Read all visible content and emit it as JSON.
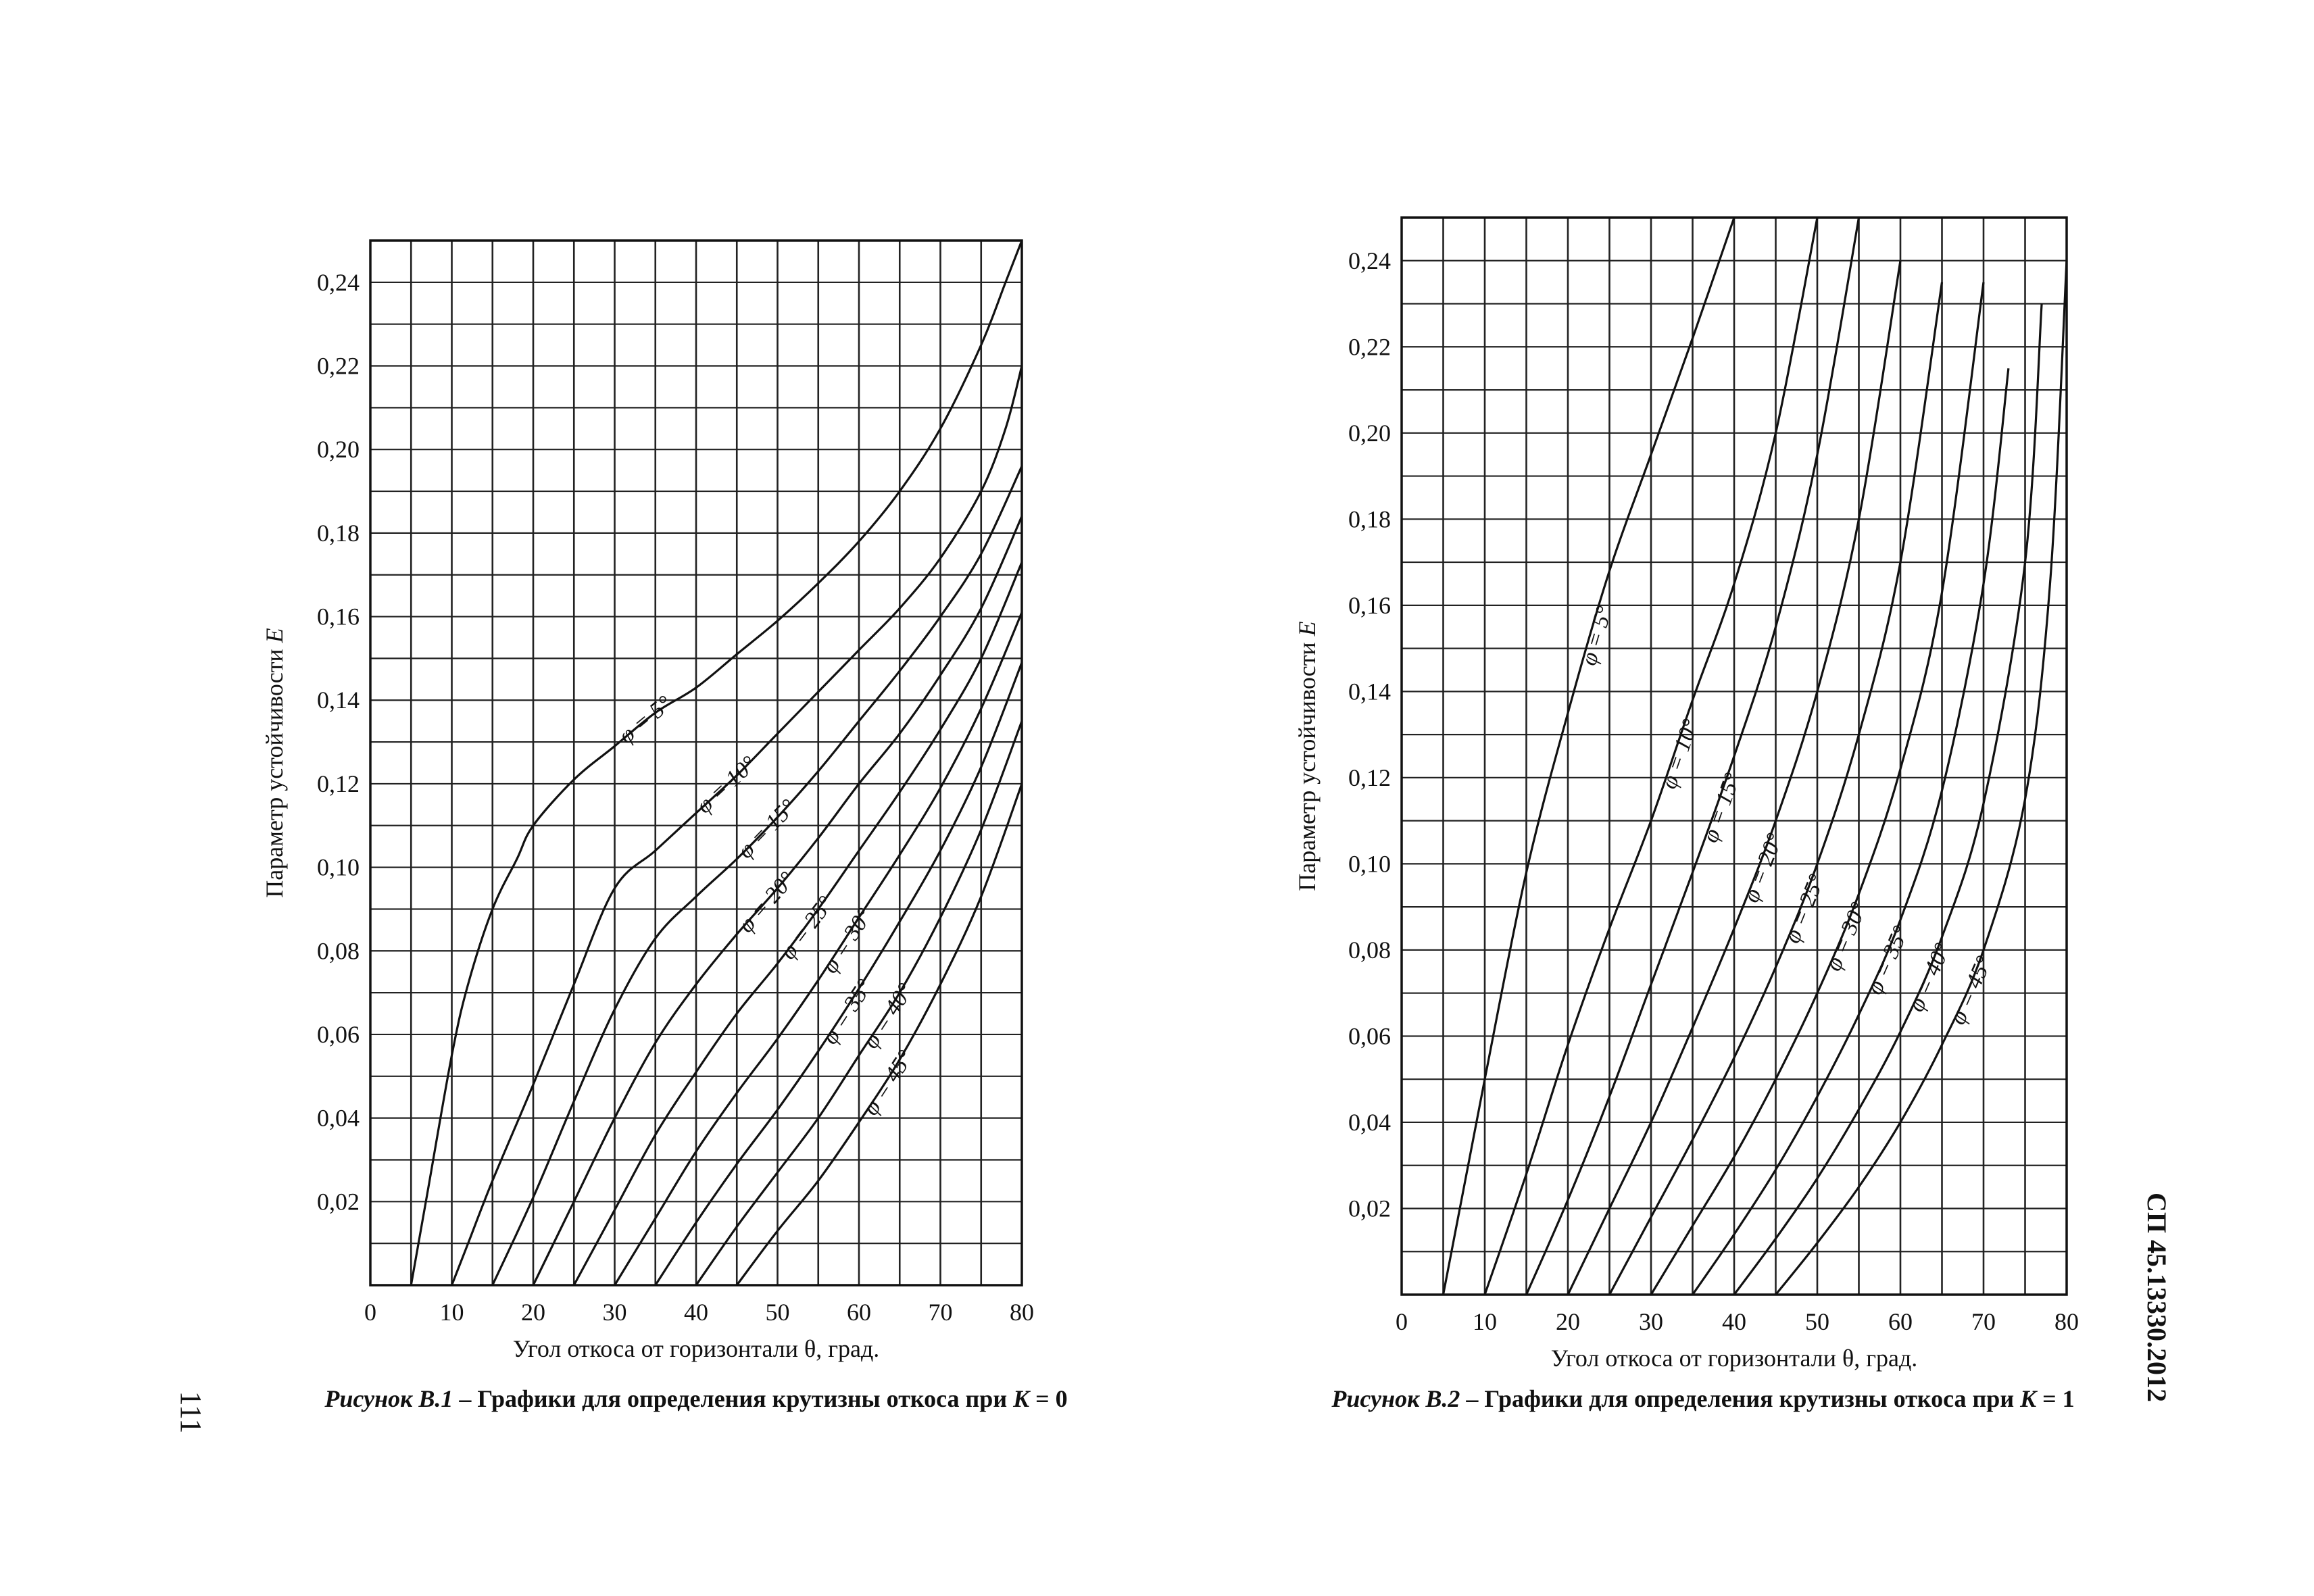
{
  "page": {
    "page_number": "111",
    "standard_code": "СП 45.13330.2012"
  },
  "chart_data": [
    {
      "type": "line",
      "caption_number": "Рисунок В.1",
      "caption_text": " – Графики для определения крутизны откоса при ",
      "caption_var": "K",
      "caption_eq": " = 0",
      "xlabel": "Угол откоса от горизонтали θ, град.",
      "ylabel": "Параметр устойчивости ",
      "ylabel_var": "E",
      "xlim": [
        0,
        80
      ],
      "ylim": [
        0,
        0.25
      ],
      "x_ticks": [
        "0",
        "10",
        "20",
        "30",
        "40",
        "50",
        "60",
        "70",
        "80"
      ],
      "y_ticks": [
        "0,02",
        "0,04",
        "0,06",
        "0,08",
        "0,10",
        "0,12",
        "0,14",
        "0,16",
        "0,18",
        "0,20",
        "0,22",
        "0,24"
      ],
      "grid": true,
      "series": [
        {
          "name": "φ = 5°",
          "x": [
            5,
            7,
            10,
            12,
            15,
            18,
            20,
            25,
            30,
            35,
            40,
            45,
            50,
            55,
            60,
            65,
            70,
            75,
            78,
            80
          ],
          "y": [
            0,
            0.022,
            0.055,
            0.072,
            0.09,
            0.102,
            0.11,
            0.121,
            0.129,
            0.137,
            0.143,
            0.151,
            0.159,
            0.168,
            0.178,
            0.19,
            0.205,
            0.225,
            0.24,
            0.252
          ]
        },
        {
          "name": "φ = 10°",
          "x": [
            10,
            12,
            15,
            20,
            25,
            30,
            35,
            40,
            45,
            50,
            55,
            60,
            65,
            70,
            75,
            78,
            80
          ],
          "y": [
            0,
            0.01,
            0.025,
            0.048,
            0.072,
            0.095,
            0.104,
            0.113,
            0.122,
            0.132,
            0.142,
            0.152,
            0.162,
            0.174,
            0.19,
            0.205,
            0.22
          ]
        },
        {
          "name": "φ = 15°",
          "x": [
            15,
            20,
            25,
            30,
            35,
            40,
            45,
            50,
            55,
            60,
            65,
            70,
            75,
            80
          ],
          "y": [
            0,
            0.021,
            0.044,
            0.066,
            0.083,
            0.093,
            0.102,
            0.112,
            0.123,
            0.135,
            0.147,
            0.16,
            0.175,
            0.196
          ]
        },
        {
          "name": "φ = 20°",
          "x": [
            20,
            25,
            30,
            35,
            40,
            45,
            50,
            55,
            60,
            65,
            70,
            75,
            80
          ],
          "y": [
            0,
            0.02,
            0.04,
            0.058,
            0.072,
            0.084,
            0.095,
            0.107,
            0.12,
            0.132,
            0.146,
            0.162,
            0.184
          ]
        },
        {
          "name": "φ = 25°",
          "x": [
            25,
            30,
            35,
            40,
            45,
            50,
            55,
            60,
            65,
            70,
            75,
            80
          ],
          "y": [
            0,
            0.018,
            0.036,
            0.051,
            0.065,
            0.077,
            0.09,
            0.104,
            0.118,
            0.133,
            0.15,
            0.173
          ]
        },
        {
          "name": "φ = 30°",
          "x": [
            30,
            35,
            40,
            45,
            50,
            55,
            60,
            65,
            70,
            75,
            80
          ],
          "y": [
            0,
            0.016,
            0.032,
            0.046,
            0.059,
            0.073,
            0.088,
            0.103,
            0.119,
            0.138,
            0.161
          ]
        },
        {
          "name": "φ = 35°",
          "x": [
            35,
            40,
            45,
            50,
            55,
            60,
            65,
            70,
            75,
            80
          ],
          "y": [
            0,
            0.015,
            0.029,
            0.042,
            0.056,
            0.071,
            0.087,
            0.104,
            0.124,
            0.149
          ]
        },
        {
          "name": "φ = 40°",
          "x": [
            40,
            45,
            50,
            55,
            60,
            65,
            70,
            75,
            80
          ],
          "y": [
            0,
            0.014,
            0.027,
            0.04,
            0.055,
            0.07,
            0.088,
            0.109,
            0.135
          ]
        },
        {
          "name": "φ = 45°",
          "x": [
            45,
            50,
            55,
            60,
            65,
            70,
            75,
            80
          ],
          "y": [
            0,
            0.013,
            0.025,
            0.039,
            0.054,
            0.072,
            0.093,
            0.12
          ]
        }
      ]
    },
    {
      "type": "line",
      "caption_number": "Рисунок В.2",
      "caption_text": " – Графики для определения крутизны откоса при ",
      "caption_var": "K",
      "caption_eq": " = 1",
      "xlabel": "Угол откоса от горизонтали θ, град.",
      "ylabel": "Параметр устойчивости ",
      "ylabel_var": "E",
      "xlim": [
        0,
        80
      ],
      "ylim": [
        0,
        0.25
      ],
      "x_ticks": [
        "0",
        "10",
        "20",
        "30",
        "40",
        "50",
        "60",
        "70",
        "80"
      ],
      "y_ticks": [
        "0,02",
        "0,04",
        "0,06",
        "0,08",
        "0,10",
        "0,12",
        "0,14",
        "0,16",
        "0,18",
        "0,20",
        "0,22",
        "0,24"
      ],
      "grid": true,
      "series": [
        {
          "name": "φ = 5°",
          "x": [
            5,
            7,
            10,
            15,
            20,
            25,
            30,
            35,
            40
          ],
          "y": [
            0,
            0.02,
            0.05,
            0.098,
            0.135,
            0.168,
            0.195,
            0.222,
            0.25
          ]
        },
        {
          "name": "φ = 10°",
          "x": [
            10,
            15,
            20,
            25,
            30,
            35,
            40,
            45,
            50
          ],
          "y": [
            0,
            0.028,
            0.058,
            0.085,
            0.11,
            0.138,
            0.165,
            0.2,
            0.25
          ]
        },
        {
          "name": "φ = 15°",
          "x": [
            15,
            20,
            25,
            30,
            35,
            40,
            45,
            50,
            55
          ],
          "y": [
            0,
            0.022,
            0.046,
            0.072,
            0.098,
            0.125,
            0.155,
            0.195,
            0.25
          ]
        },
        {
          "name": "φ = 20°",
          "x": [
            20,
            25,
            30,
            35,
            40,
            45,
            50,
            55,
            60
          ],
          "y": [
            0,
            0.02,
            0.04,
            0.062,
            0.085,
            0.11,
            0.14,
            0.18,
            0.24
          ]
        },
        {
          "name": "φ = 25°",
          "x": [
            25,
            30,
            35,
            40,
            45,
            50,
            55,
            60,
            65
          ],
          "y": [
            0,
            0.018,
            0.036,
            0.055,
            0.076,
            0.1,
            0.13,
            0.17,
            0.235
          ]
        },
        {
          "name": "φ = 30°",
          "x": [
            30,
            35,
            40,
            45,
            50,
            55,
            60,
            65,
            70
          ],
          "y": [
            0,
            0.016,
            0.032,
            0.05,
            0.07,
            0.093,
            0.122,
            0.163,
            0.235
          ]
        },
        {
          "name": "φ = 35°",
          "x": [
            35,
            40,
            45,
            50,
            55,
            60,
            65,
            70,
            73
          ],
          "y": [
            0,
            0.014,
            0.029,
            0.046,
            0.065,
            0.087,
            0.117,
            0.165,
            0.215
          ]
        },
        {
          "name": "φ = 40°",
          "x": [
            40,
            45,
            50,
            55,
            60,
            65,
            70,
            75,
            77
          ],
          "y": [
            0,
            0.013,
            0.027,
            0.043,
            0.061,
            0.083,
            0.114,
            0.17,
            0.23
          ]
        },
        {
          "name": "φ = 45°",
          "x": [
            45,
            50,
            55,
            60,
            65,
            70,
            75,
            78,
            80
          ],
          "y": [
            0,
            0.012,
            0.025,
            0.04,
            0.058,
            0.08,
            0.115,
            0.165,
            0.24
          ]
        }
      ]
    }
  ]
}
